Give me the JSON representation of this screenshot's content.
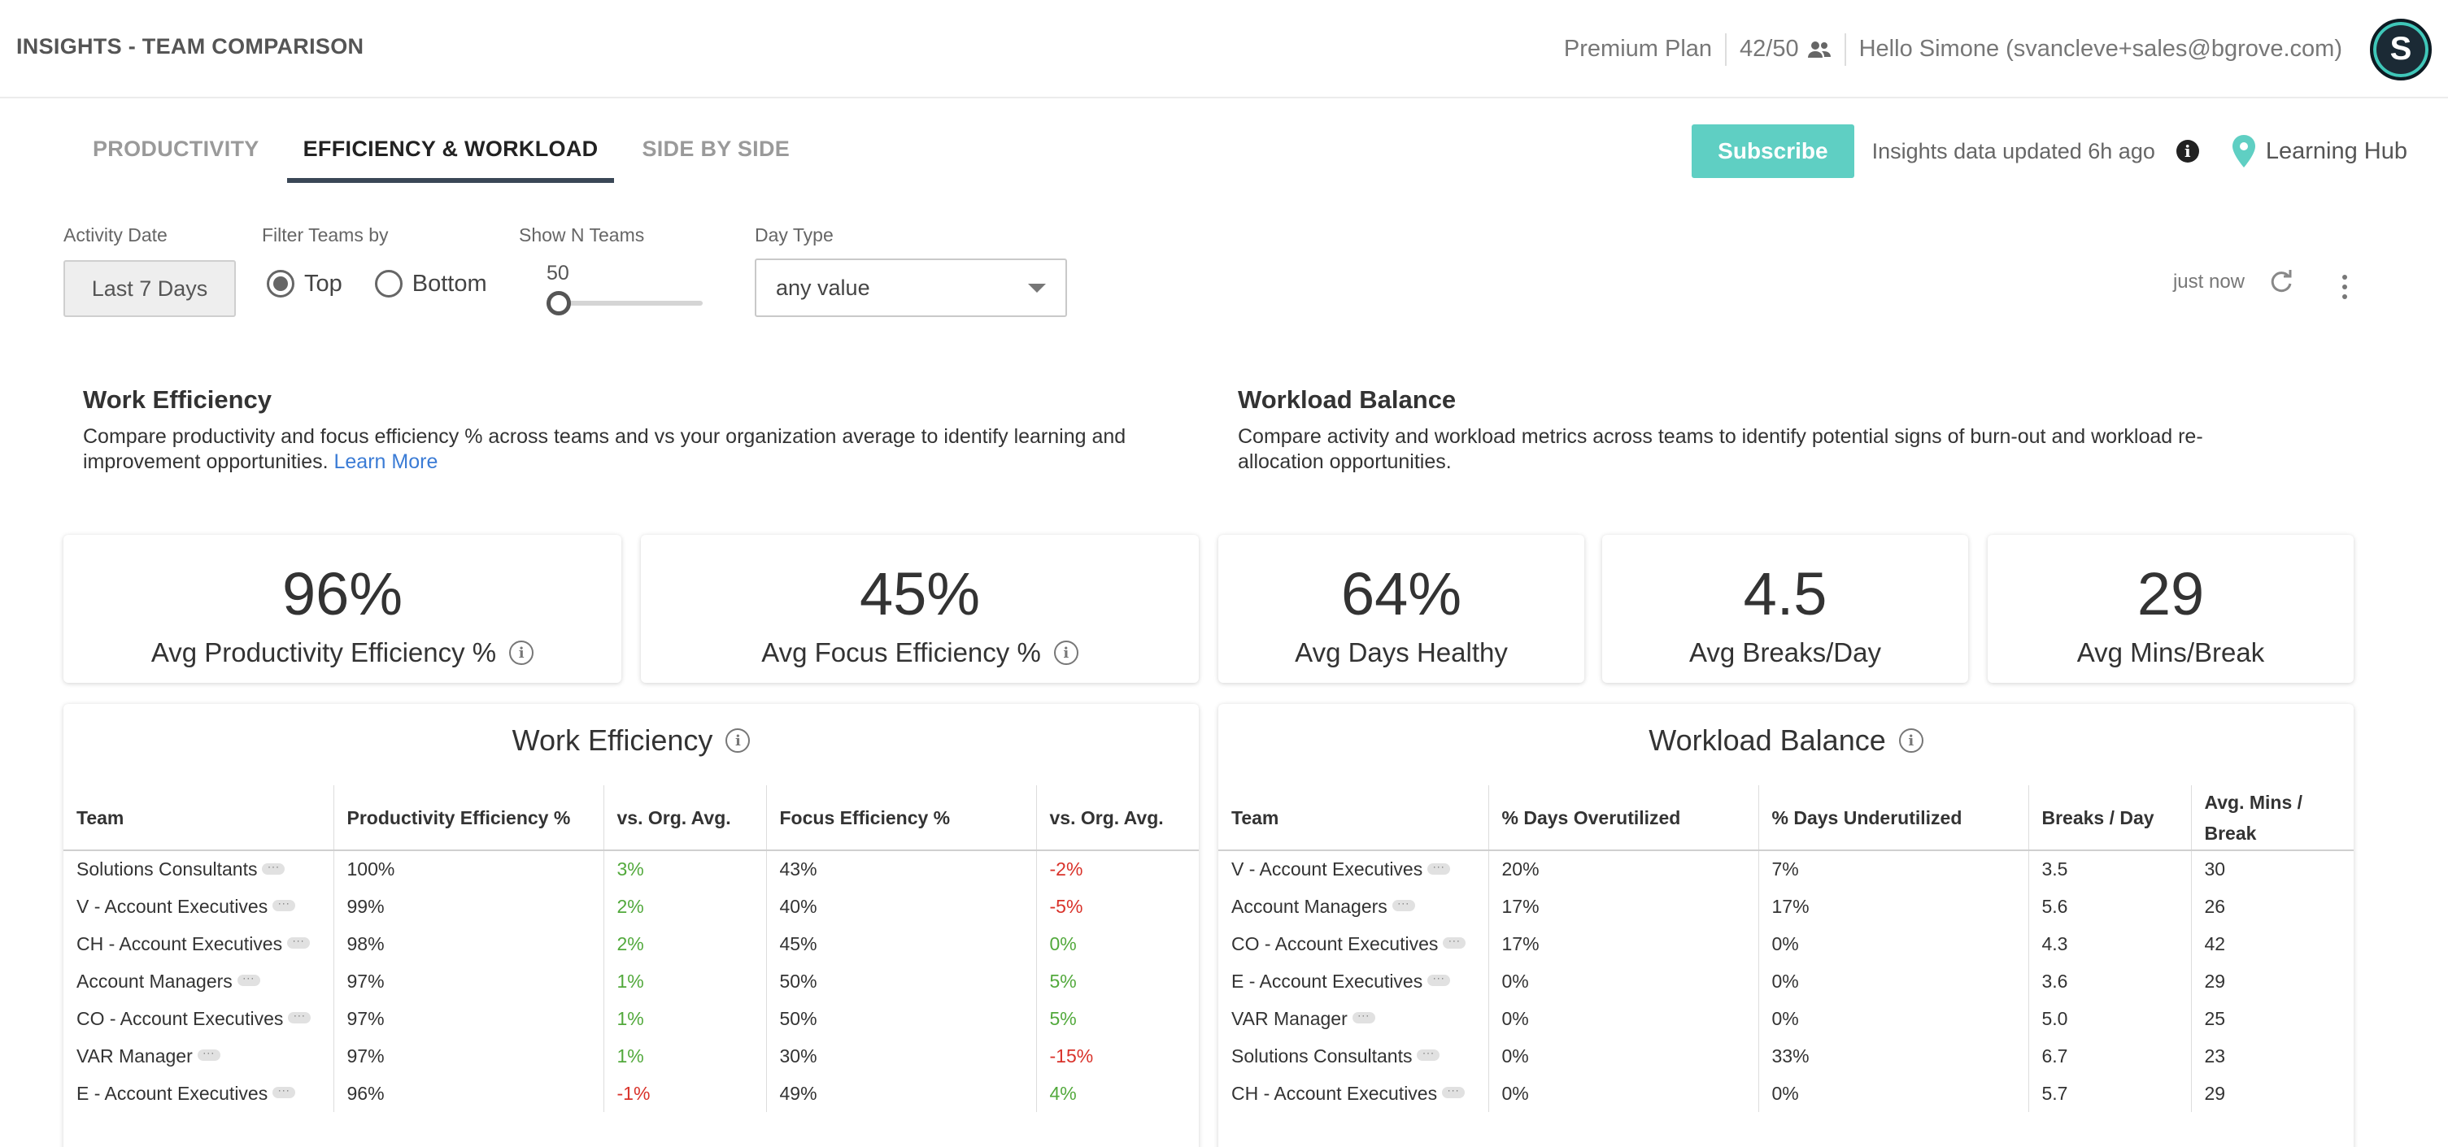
{
  "header": {
    "title": "INSIGHTS - TEAM COMPARISON",
    "plan": "Premium Plan",
    "seats": "42/50",
    "greeting": "Hello Simone (svancleve+sales@bgrove.com)",
    "avatar_initial": "S"
  },
  "tabs": [
    {
      "label": "PRODUCTIVITY",
      "active": false
    },
    {
      "label": "EFFICIENCY & WORKLOAD",
      "active": true
    },
    {
      "label": "SIDE BY SIDE",
      "active": false
    }
  ],
  "toolbar": {
    "subscribe_label": "Subscribe",
    "updated_text": "Insights data updated 6h ago",
    "learning_hub": "Learning Hub"
  },
  "filters": {
    "activity_date_label": "Activity Date",
    "activity_date_value": "Last 7 Days",
    "filter_teams_label": "Filter Teams by",
    "top_label": "Top",
    "bottom_label": "Bottom",
    "selected": "Top",
    "show_n_label": "Show N Teams",
    "show_n_value": "50",
    "day_type_label": "Day Type",
    "day_type_value": "any value",
    "refresh_text": "just now"
  },
  "sections": {
    "work_efficiency_title": "Work Efficiency",
    "work_efficiency_desc": "Compare productivity and focus efficiency % across teams and vs your organization average to identify learning and improvement opportunities.",
    "learn_more": "Learn More",
    "workload_title": "Workload Balance",
    "workload_desc": "Compare activity and workload metrics across teams to identify potential signs of burn-out and workload re-allocation opportunities."
  },
  "kpis": [
    {
      "value": "96%",
      "label": "Avg Productivity Efficiency %"
    },
    {
      "value": "45%",
      "label": "Avg Focus Efficiency %"
    },
    {
      "value": "64%",
      "label": "Avg Days Healthy"
    },
    {
      "value": "4.5",
      "label": "Avg Breaks/Day"
    },
    {
      "value": "29",
      "label": "Avg Mins/Break"
    }
  ],
  "efficiency_table": {
    "title": "Work Efficiency",
    "columns": [
      "Team",
      "Productivity Efficiency %",
      "vs. Org. Avg.",
      "Focus Efficiency %",
      "vs. Org. Avg."
    ],
    "rows": [
      [
        "Solutions Consultants",
        "100%",
        "3%",
        "43%",
        "-2%"
      ],
      [
        "V - Account Executives",
        "99%",
        "2%",
        "40%",
        "-5%"
      ],
      [
        "CH - Account Executives",
        "98%",
        "2%",
        "45%",
        "0%"
      ],
      [
        "Account Managers",
        "97%",
        "1%",
        "50%",
        "5%"
      ],
      [
        "CO - Account Executives",
        "97%",
        "1%",
        "50%",
        "5%"
      ],
      [
        "VAR Manager",
        "97%",
        "1%",
        "30%",
        "-15%"
      ],
      [
        "E - Account Executives",
        "96%",
        "-1%",
        "49%",
        "4%"
      ]
    ]
  },
  "workload_table": {
    "title": "Workload Balance",
    "columns": [
      "Team",
      "% Days Overutilized",
      "% Days Underutilized",
      "Breaks / Day",
      "Avg. Mins / Break"
    ],
    "rows": [
      [
        "V - Account Executives",
        "20%",
        "7%",
        "3.5",
        "30"
      ],
      [
        "Account Managers",
        "17%",
        "17%",
        "5.6",
        "26"
      ],
      [
        "CO - Account Executives",
        "17%",
        "0%",
        "4.3",
        "42"
      ],
      [
        "E - Account Executives",
        "0%",
        "0%",
        "3.6",
        "29"
      ],
      [
        "VAR Manager",
        "0%",
        "0%",
        "5.0",
        "25"
      ],
      [
        "Solutions Consultants",
        "0%",
        "33%",
        "6.7",
        "23"
      ],
      [
        "CH - Account Executives",
        "0%",
        "0%",
        "5.7",
        "29"
      ]
    ]
  },
  "colors": {
    "accent": "#5fcfc3",
    "positive": "#52a93c",
    "negative": "#d9322a",
    "link": "#3a7bd5"
  }
}
